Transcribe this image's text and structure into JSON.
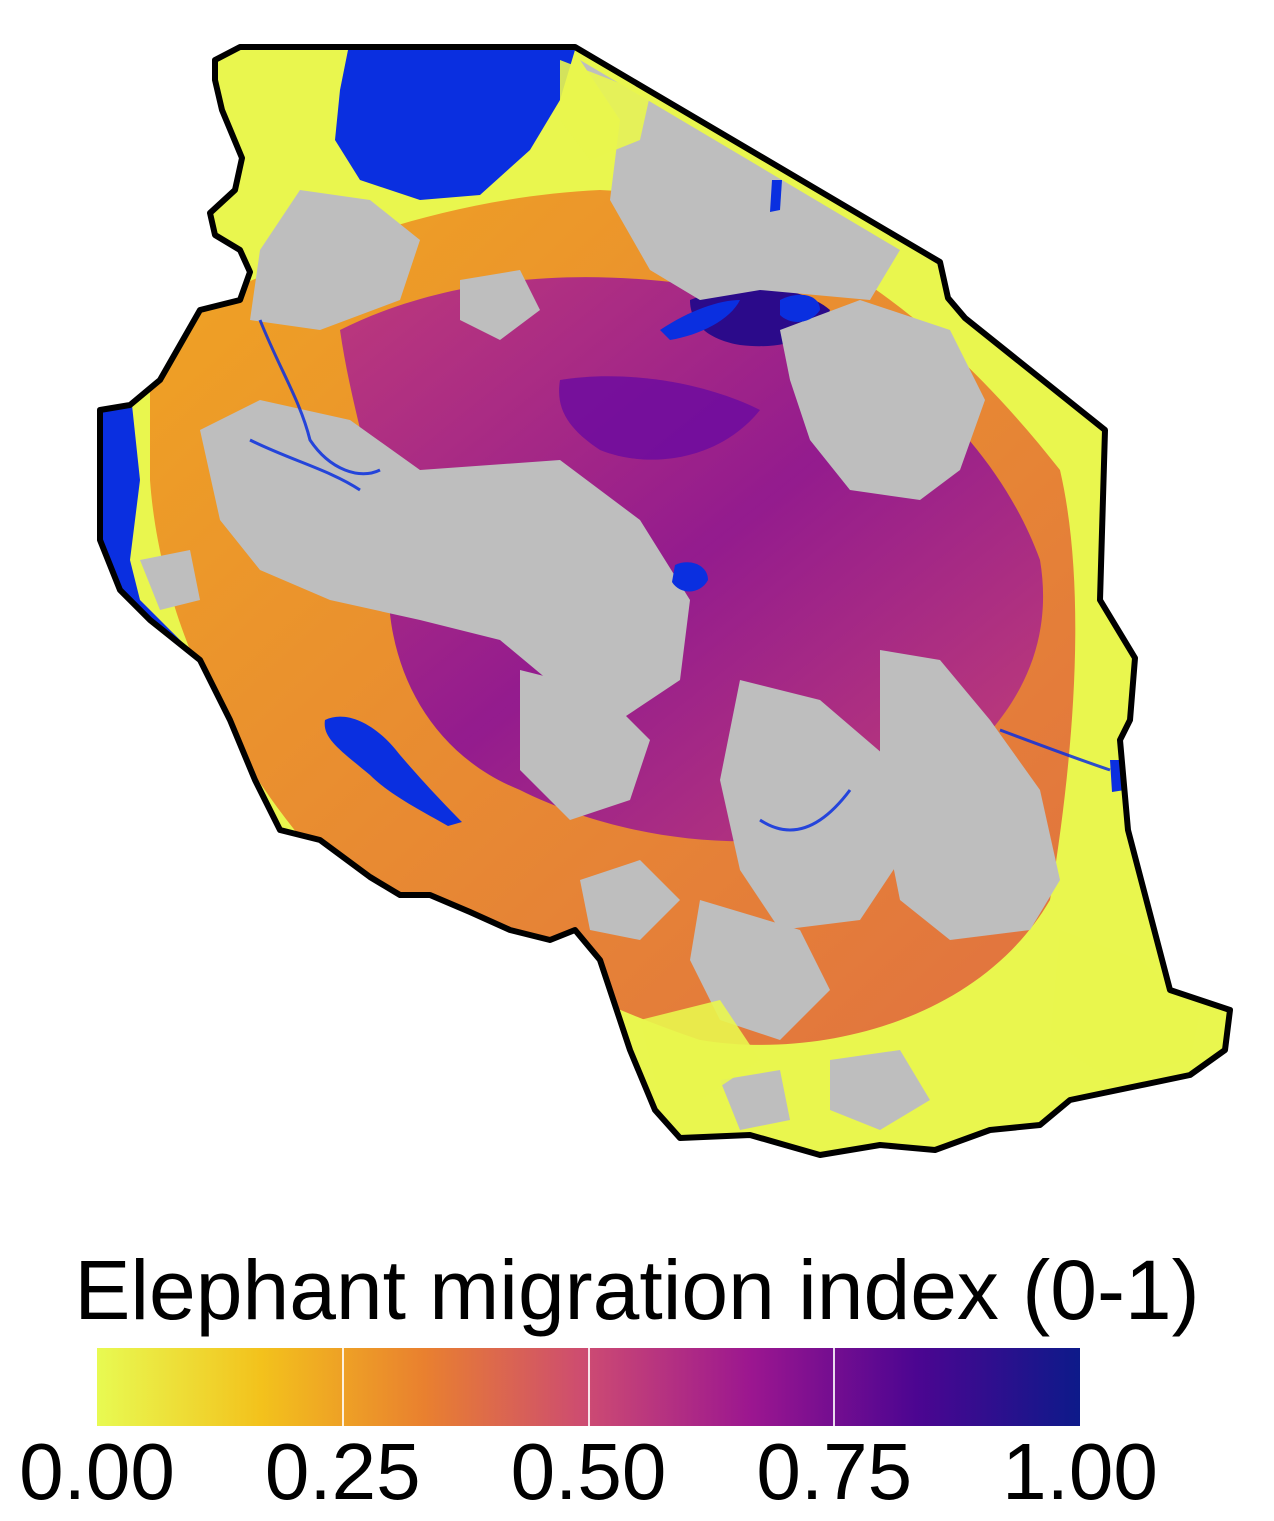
{
  "map": {
    "no_data_color": "#bebebe",
    "water_color": "#0a2fe0",
    "border_color": "#000000"
  },
  "legend": {
    "title": "Elephant migration index (0-1)",
    "scale": "plasma (reversed)",
    "range": [
      0,
      1
    ],
    "ticks": [
      "0.00",
      "0.25",
      "0.50",
      "0.75",
      "1.00"
    ],
    "colors": [
      "#e8fa52",
      "#f3c21c",
      "#e9802f",
      "#cc4a73",
      "#9b1690",
      "#4c0591",
      "#0d1a8a"
    ]
  }
}
